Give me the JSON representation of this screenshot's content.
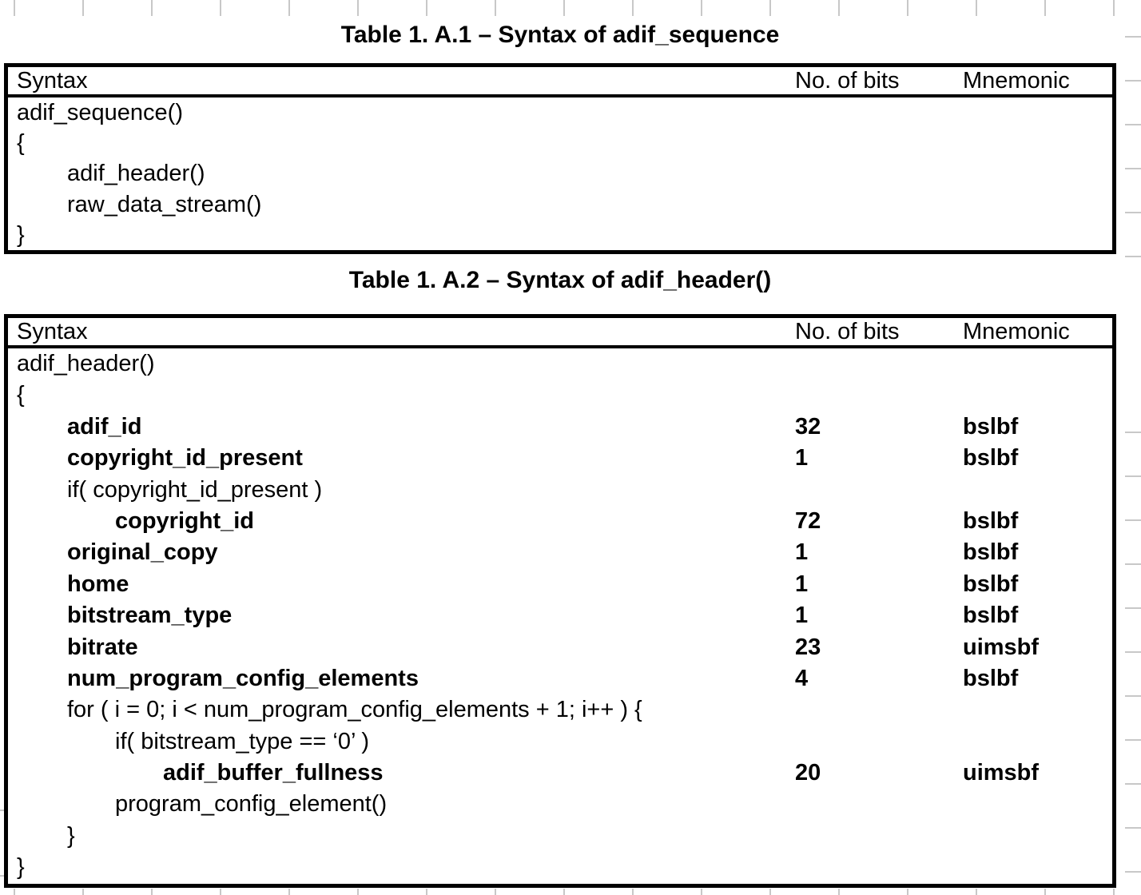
{
  "page": {
    "background": "#ffffff",
    "grid_tick_color": "#c8c8c8",
    "text_color": "#000000",
    "border_color": "#000000"
  },
  "columns": {
    "syntax": "Syntax",
    "bits": "No. of bits",
    "mnemonic": "Mnemonic"
  },
  "tables": [
    {
      "title": "Table 1. A.1 – Syntax of adif_sequence",
      "rows": [
        {
          "syntax": "adif_sequence()",
          "indent": 0,
          "bold": false,
          "bits": "",
          "mnemonic": ""
        },
        {
          "syntax": "{",
          "indent": 0,
          "bold": false,
          "bits": "",
          "mnemonic": ""
        },
        {
          "syntax": "adif_header()",
          "indent": 1,
          "bold": false,
          "bits": "",
          "mnemonic": ""
        },
        {
          "syntax": "raw_data_stream()",
          "indent": 1,
          "bold": false,
          "bits": "",
          "mnemonic": ""
        },
        {
          "syntax": "}",
          "indent": 0,
          "bold": false,
          "bits": "",
          "mnemonic": ""
        }
      ]
    },
    {
      "title": "Table 1. A.2 – Syntax of adif_header()",
      "rows": [
        {
          "syntax": "adif_header()",
          "indent": 0,
          "bold": false,
          "bits": "",
          "mnemonic": ""
        },
        {
          "syntax": "{",
          "indent": 0,
          "bold": false,
          "bits": "",
          "mnemonic": ""
        },
        {
          "syntax": "adif_id",
          "indent": 1,
          "bold": true,
          "bits": "32",
          "mnemonic": "bslbf"
        },
        {
          "syntax": "copyright_id_present",
          "indent": 1,
          "bold": true,
          "bits": "1",
          "mnemonic": "bslbf"
        },
        {
          "syntax": "if( copyright_id_present )",
          "indent": 1,
          "bold": false,
          "bits": "",
          "mnemonic": ""
        },
        {
          "syntax": "copyright_id",
          "indent": 2,
          "bold": true,
          "bits": "72",
          "mnemonic": "bslbf"
        },
        {
          "syntax": "original_copy",
          "indent": 1,
          "bold": true,
          "bits": "1",
          "mnemonic": "bslbf"
        },
        {
          "syntax": "home",
          "indent": 1,
          "bold": true,
          "bits": "1",
          "mnemonic": "bslbf"
        },
        {
          "syntax": "bitstream_type",
          "indent": 1,
          "bold": true,
          "bits": "1",
          "mnemonic": "bslbf"
        },
        {
          "syntax": "bitrate",
          "indent": 1,
          "bold": true,
          "bits": "23",
          "mnemonic": "uimsbf"
        },
        {
          "syntax": "num_program_config_elements",
          "indent": 1,
          "bold": true,
          "bits": "4",
          "mnemonic": "bslbf"
        },
        {
          "syntax": "for ( i = 0; i < num_program_config_elements + 1; i++ ) {",
          "indent": 1,
          "bold": false,
          "bits": "",
          "mnemonic": ""
        },
        {
          "syntax": "if( bitstream_type == ‘0’ )",
          "indent": 2,
          "bold": false,
          "bits": "",
          "mnemonic": ""
        },
        {
          "syntax": "adif_buffer_fullness",
          "indent": 3,
          "bold": true,
          "bits": "20",
          "mnemonic": "uimsbf"
        },
        {
          "syntax": "program_config_element()",
          "indent": 2,
          "bold": false,
          "bits": "",
          "mnemonic": ""
        },
        {
          "syntax": "}",
          "indent": 1,
          "bold": false,
          "bits": "",
          "mnemonic": ""
        },
        {
          "syntax": "}",
          "indent": 0,
          "bold": false,
          "bits": "",
          "mnemonic": ""
        }
      ]
    }
  ]
}
